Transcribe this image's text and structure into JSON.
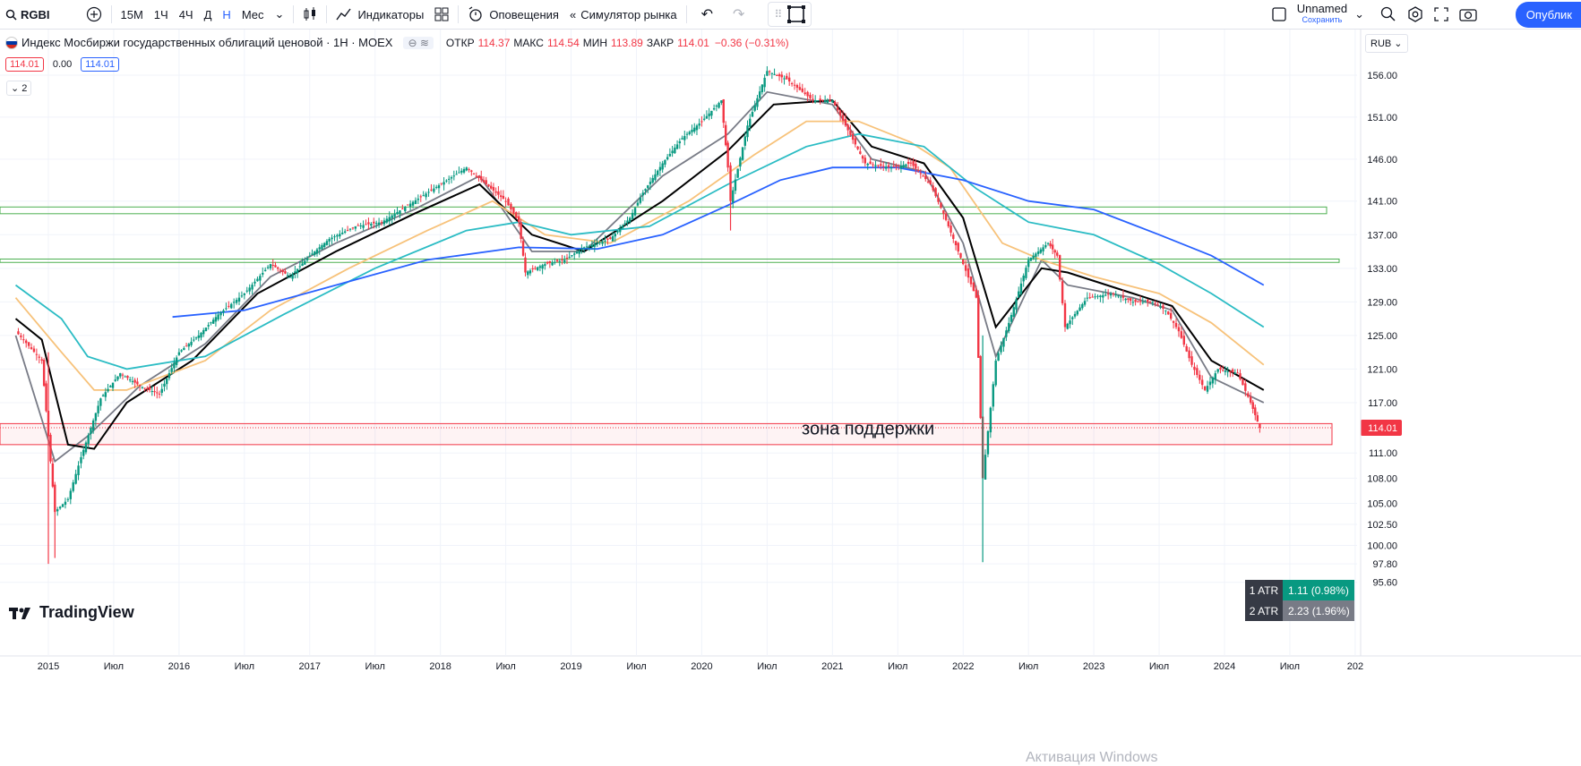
{
  "toolbar": {
    "symbol": "RGBI",
    "intervals": [
      "15М",
      "1Ч",
      "4Ч",
      "Д",
      "Н",
      "Мес"
    ],
    "active_interval": "Н",
    "indicators_label": "Индикаторы",
    "alerts_label": "Оповещения",
    "replay_label": "Симулятор рынка",
    "layout_name": "Unnamed",
    "layout_status": "Сохранить",
    "publish_label": "Опублик"
  },
  "legend": {
    "title": "Индекс Мосбиржи государственных облигаций ценовой · 1Н · MOEX",
    "open_label": "ОТКР",
    "open": "114.37",
    "high_label": "МАКС",
    "high": "114.54",
    "low_label": "МИН",
    "low": "113.89",
    "close_label": "ЗАКР",
    "close": "114.01",
    "change": "−0.36 (−0.31%)",
    "bid": "114.01",
    "spread": "0.00",
    "ask": "114.01",
    "collapsed_count": "2",
    "currency": "RUB"
  },
  "branding": {
    "logo_text": "TradingView"
  },
  "atr": [
    {
      "label": "1 ATR",
      "value": "1.11 (0.98%)",
      "color": "#089981"
    },
    {
      "label": "2 ATR",
      "value": "2.23 (1.96%)",
      "color": "#787b86"
    }
  ],
  "watermark": "Активация Windows",
  "chart_data": {
    "type": "candlestick",
    "title": "Индекс Мосбиржи государственных облигаций ценовой · 1Н · MOEX",
    "y_ticks": [
      156.0,
      151.0,
      146.0,
      141.0,
      137.0,
      133.0,
      129.0,
      125.0,
      121.0,
      117.0,
      114.01,
      111.0,
      108.0,
      105.0,
      102.5,
      100.0,
      97.8,
      95.6
    ],
    "x_ticks": [
      "2015",
      "Июл",
      "2016",
      "Июл",
      "2017",
      "Июл",
      "2018",
      "Июл",
      "2019",
      "Июл",
      "2020",
      "Июл",
      "2021",
      "Июл",
      "2022",
      "Июл",
      "2023",
      "Июл",
      "2024",
      "Июл",
      "202"
    ],
    "last_price": "114.01",
    "close_path": [
      [
        2014.75,
        125.5
      ],
      [
        2014.95,
        122.0
      ],
      [
        2015.0,
        113.0
      ],
      [
        2015.05,
        104.0
      ],
      [
        2015.15,
        105.5
      ],
      [
        2015.25,
        110.5
      ],
      [
        2015.4,
        117.5
      ],
      [
        2015.55,
        120.5
      ],
      [
        2015.7,
        119.0
      ],
      [
        2015.85,
        118.0
      ],
      [
        2016.0,
        123.0
      ],
      [
        2016.15,
        125.0
      ],
      [
        2016.3,
        127.5
      ],
      [
        2016.5,
        130.0
      ],
      [
        2016.7,
        133.5
      ],
      [
        2016.85,
        132.0
      ],
      [
        2017.0,
        134.5
      ],
      [
        2017.15,
        136.5
      ],
      [
        2017.35,
        138.0
      ],
      [
        2017.55,
        138.5
      ],
      [
        2017.75,
        140.5
      ],
      [
        2017.95,
        142.5
      ],
      [
        2018.2,
        145.0
      ],
      [
        2018.35,
        143.0
      ],
      [
        2018.5,
        141.0
      ],
      [
        2018.6,
        138.5
      ],
      [
        2018.65,
        132.5
      ],
      [
        2018.8,
        133.5
      ],
      [
        2018.95,
        134.0
      ],
      [
        2019.1,
        135.5
      ],
      [
        2019.3,
        136.5
      ],
      [
        2019.45,
        139.0
      ],
      [
        2019.55,
        142.0
      ],
      [
        2019.7,
        145.5
      ],
      [
        2019.85,
        148.5
      ],
      [
        2020.0,
        150.5
      ],
      [
        2020.15,
        153.0
      ],
      [
        2020.2,
        145.0
      ],
      [
        2020.22,
        141.0
      ],
      [
        2020.35,
        150.0
      ],
      [
        2020.5,
        156.5
      ],
      [
        2020.65,
        155.5
      ],
      [
        2020.85,
        153.0
      ],
      [
        2021.0,
        153.0
      ],
      [
        2021.1,
        150.0
      ],
      [
        2021.25,
        145.5
      ],
      [
        2021.45,
        145.0
      ],
      [
        2021.6,
        145.5
      ],
      [
        2021.75,
        143.0
      ],
      [
        2021.85,
        139.5
      ],
      [
        2022.0,
        133.5
      ],
      [
        2022.1,
        129.5
      ],
      [
        2022.15,
        108.0
      ],
      [
        2022.25,
        122.0
      ],
      [
        2022.35,
        126.5
      ],
      [
        2022.5,
        134.0
      ],
      [
        2022.65,
        136.0
      ],
      [
        2022.72,
        134.5
      ],
      [
        2022.78,
        126.0
      ],
      [
        2022.95,
        129.5
      ],
      [
        2023.15,
        130.0
      ],
      [
        2023.3,
        129.0
      ],
      [
        2023.45,
        129.0
      ],
      [
        2023.55,
        128.0
      ],
      [
        2023.65,
        125.5
      ],
      [
        2023.75,
        121.5
      ],
      [
        2023.85,
        118.5
      ],
      [
        2023.95,
        121.0
      ],
      [
        2024.1,
        120.5
      ],
      [
        2024.2,
        117.0
      ],
      [
        2024.27,
        114.01
      ]
    ],
    "ma_series": [
      {
        "color": "#787b86",
        "points": [
          [
            2014.75,
            125.0
          ],
          [
            2015.05,
            110.0
          ],
          [
            2015.3,
            113.0
          ],
          [
            2015.7,
            119.0
          ],
          [
            2016.2,
            124.0
          ],
          [
            2016.7,
            132.0
          ],
          [
            2017.2,
            136.0
          ],
          [
            2017.8,
            140.0
          ],
          [
            2018.3,
            144.0
          ],
          [
            2018.7,
            135.0
          ],
          [
            2019.1,
            135.0
          ],
          [
            2019.7,
            144.0
          ],
          [
            2020.2,
            149.0
          ],
          [
            2020.5,
            154.0
          ],
          [
            2021.0,
            152.5
          ],
          [
            2021.3,
            146.0
          ],
          [
            2021.7,
            144.5
          ],
          [
            2022.0,
            136.0
          ],
          [
            2022.25,
            122.5
          ],
          [
            2022.6,
            134.0
          ],
          [
            2022.8,
            131.0
          ],
          [
            2023.3,
            129.5
          ],
          [
            2023.6,
            128.0
          ],
          [
            2023.9,
            120.0
          ],
          [
            2024.3,
            117.0
          ]
        ]
      },
      {
        "color": "#000000",
        "points": [
          [
            2014.75,
            127.0
          ],
          [
            2014.95,
            124.5
          ],
          [
            2015.15,
            112.0
          ],
          [
            2015.35,
            111.5
          ],
          [
            2015.6,
            117.0
          ],
          [
            2016.1,
            122.0
          ],
          [
            2016.6,
            130.0
          ],
          [
            2017.2,
            135.0
          ],
          [
            2017.8,
            139.5
          ],
          [
            2018.3,
            143.0
          ],
          [
            2018.7,
            137.0
          ],
          [
            2019.1,
            135.0
          ],
          [
            2019.7,
            141.0
          ],
          [
            2020.2,
            147.0
          ],
          [
            2020.55,
            152.5
          ],
          [
            2021.0,
            153.0
          ],
          [
            2021.3,
            147.5
          ],
          [
            2021.7,
            145.5
          ],
          [
            2022.0,
            139.0
          ],
          [
            2022.25,
            126.0
          ],
          [
            2022.6,
            133.0
          ],
          [
            2022.8,
            132.5
          ],
          [
            2023.3,
            130.0
          ],
          [
            2023.6,
            128.5
          ],
          [
            2023.9,
            122.0
          ],
          [
            2024.3,
            118.5
          ]
        ]
      },
      {
        "color": "#f7c27a",
        "points": [
          [
            2014.75,
            129.5
          ],
          [
            2015.1,
            123.0
          ],
          [
            2015.35,
            118.5
          ],
          [
            2015.6,
            118.5
          ],
          [
            2016.2,
            122.0
          ],
          [
            2016.7,
            128.0
          ],
          [
            2017.3,
            133.0
          ],
          [
            2017.9,
            137.5
          ],
          [
            2018.4,
            141.0
          ],
          [
            2018.8,
            137.0
          ],
          [
            2019.3,
            136.0
          ],
          [
            2019.9,
            141.0
          ],
          [
            2020.4,
            146.5
          ],
          [
            2020.8,
            150.5
          ],
          [
            2021.2,
            150.5
          ],
          [
            2021.6,
            148.0
          ],
          [
            2021.9,
            145.0
          ],
          [
            2022.3,
            136.0
          ],
          [
            2022.6,
            134.0
          ],
          [
            2023.0,
            132.0
          ],
          [
            2023.5,
            130.0
          ],
          [
            2023.9,
            126.5
          ],
          [
            2024.3,
            121.5
          ]
        ]
      },
      {
        "color": "#2bbcc4",
        "points": [
          [
            2014.75,
            131.0
          ],
          [
            2015.1,
            127.0
          ],
          [
            2015.3,
            122.5
          ],
          [
            2015.6,
            121.0
          ],
          [
            2016.2,
            122.5
          ],
          [
            2016.8,
            127.5
          ],
          [
            2017.5,
            133.0
          ],
          [
            2018.2,
            137.5
          ],
          [
            2018.6,
            138.5
          ],
          [
            2019.0,
            137.0
          ],
          [
            2019.6,
            138.0
          ],
          [
            2020.2,
            143.0
          ],
          [
            2020.8,
            147.5
          ],
          [
            2021.2,
            149.0
          ],
          [
            2021.7,
            147.5
          ],
          [
            2022.1,
            142.5
          ],
          [
            2022.5,
            138.5
          ],
          [
            2023.0,
            137.0
          ],
          [
            2023.5,
            133.5
          ],
          [
            2023.9,
            130.0
          ],
          [
            2024.3,
            126.0
          ]
        ]
      },
      {
        "color": "#2962ff",
        "points": [
          [
            2015.95,
            127.2
          ],
          [
            2016.5,
            128.0
          ],
          [
            2017.2,
            131.0
          ],
          [
            2017.9,
            134.0
          ],
          [
            2018.6,
            135.5
          ],
          [
            2019.2,
            135.3
          ],
          [
            2019.7,
            137.0
          ],
          [
            2020.2,
            140.5
          ],
          [
            2020.6,
            143.5
          ],
          [
            2021.0,
            145.0
          ],
          [
            2021.5,
            145.0
          ],
          [
            2022.0,
            143.5
          ],
          [
            2022.5,
            141.0
          ],
          [
            2023.0,
            140.0
          ],
          [
            2023.5,
            137.0
          ],
          [
            2023.9,
            134.5
          ],
          [
            2024.3,
            131.0
          ]
        ]
      }
    ],
    "zones": [
      {
        "y1": 139.5,
        "y2": 140.3,
        "color": "#4caf50",
        "type": "resistance"
      },
      {
        "y1": 133.7,
        "y2": 134.1,
        "color": "#4caf50",
        "type": "resistance"
      },
      {
        "y1": 112.0,
        "y2": 114.5,
        "color": "#f23645",
        "label": "зона поддержки"
      }
    ],
    "spikes": [
      {
        "x": 2015.0,
        "low": 97.8,
        "high": 123.0
      },
      {
        "x": 2015.05,
        "low": 98.5,
        "high": 107.0
      },
      {
        "x": 2020.22,
        "low": 137.5,
        "high": 145.5
      },
      {
        "x": 2022.15,
        "low": 98.0,
        "high": 125.0
      }
    ]
  }
}
